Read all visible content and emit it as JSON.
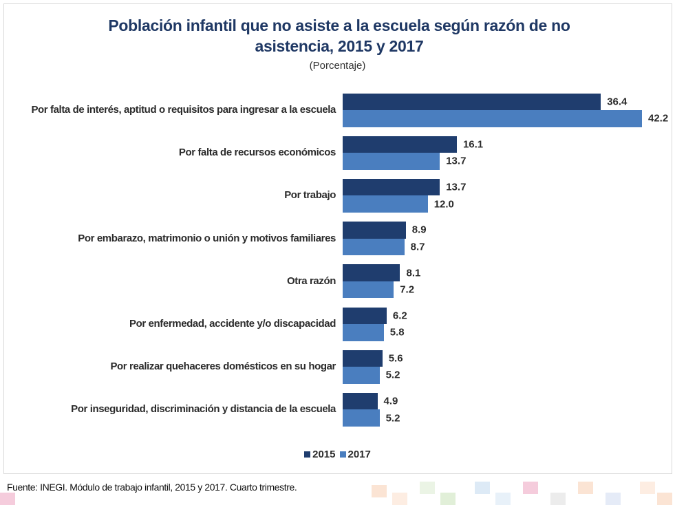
{
  "chart_data": {
    "type": "bar",
    "orientation": "horizontal",
    "title": "Población infantil que no asiste a la escuela según razón de no asistencia, 2015 y 2017",
    "subtitle": "(Porcentaje)",
    "categories": [
      "Por falta de interés, aptitud o requisitos para ingresar a la escuela",
      "Por falta de recursos económicos",
      "Por trabajo",
      "Por embarazo, matrimonio o unión y motivos familiares",
      "Otra razón",
      "Por enfermedad, accidente y/o discapacidad",
      "Por realizar quehaceres domésticos en su hogar",
      "Por inseguridad, discriminación y distancia de la escuela"
    ],
    "series": [
      {
        "name": "2015",
        "color": "#1f3d6e",
        "values": [
          36.4,
          16.1,
          13.7,
          8.9,
          8.1,
          6.2,
          5.6,
          4.9
        ],
        "value_labels": [
          "36.4",
          "16.1",
          "13.7",
          "8.9",
          "8.1",
          "6.2",
          "5.6",
          "4.9"
        ]
      },
      {
        "name": "2017",
        "color": "#4a7ebf",
        "values": [
          42.2,
          13.7,
          12.0,
          8.7,
          7.2,
          5.8,
          5.2,
          5.2
        ],
        "value_labels": [
          "42.2",
          "13.7",
          "12.0",
          "8.7",
          "7.2",
          "5.8",
          "5.2",
          "5.2"
        ]
      }
    ],
    "legend": "bottom",
    "source": "Fuente: INEGI. Módulo de trabajo infantil, 2015 y 2017. Cuarto trimestre."
  }
}
